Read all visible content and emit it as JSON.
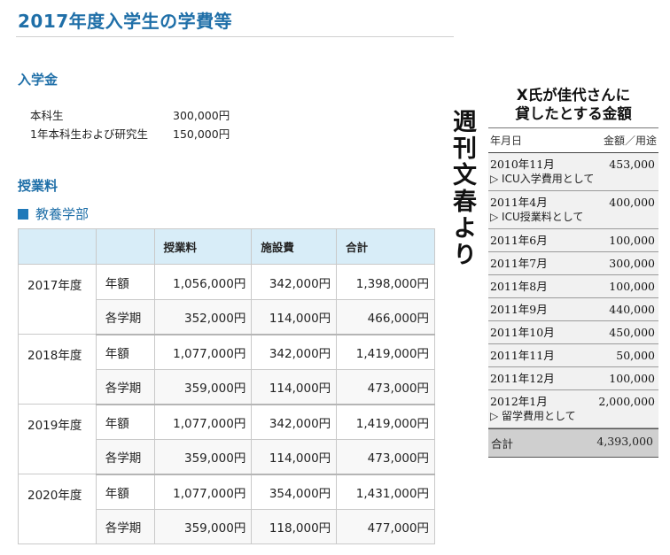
{
  "title": "2017年度入学生の学費等",
  "admission": {
    "heading": "入学金",
    "rows": [
      {
        "label": "本科生",
        "amount": "300,000円"
      },
      {
        "label": "1年本科生および研究生",
        "amount": "150,000円"
      }
    ]
  },
  "tuition": {
    "heading": "授業料",
    "subheading": "教養学部",
    "columns": [
      "",
      "",
      "授業料",
      "施設費",
      "合計"
    ],
    "groups": [
      {
        "year": "2017年度",
        "rows": [
          {
            "kind": "年額",
            "tuition": "1,056,000円",
            "facility": "342,000円",
            "total": "1,398,000円"
          },
          {
            "kind": "各学期",
            "tuition": "352,000円",
            "facility": "114,000円",
            "total": "466,000円"
          }
        ]
      },
      {
        "year": "2018年度",
        "rows": [
          {
            "kind": "年額",
            "tuition": "1,077,000円",
            "facility": "342,000円",
            "total": "1,419,000円"
          },
          {
            "kind": "各学期",
            "tuition": "359,000円",
            "facility": "114,000円",
            "total": "473,000円"
          }
        ]
      },
      {
        "year": "2019年度",
        "rows": [
          {
            "kind": "年額",
            "tuition": "1,077,000円",
            "facility": "342,000円",
            "total": "1,419,000円"
          },
          {
            "kind": "各学期",
            "tuition": "359,000円",
            "facility": "114,000円",
            "total": "473,000円"
          }
        ]
      },
      {
        "year": "2020年度",
        "rows": [
          {
            "kind": "年額",
            "tuition": "1,077,000円",
            "facility": "354,000円",
            "total": "1,431,000円"
          },
          {
            "kind": "各学期",
            "tuition": "359,000円",
            "facility": "118,000円",
            "total": "477,000円"
          }
        ]
      }
    ]
  },
  "source_label": "週刊文春より",
  "sidebar": {
    "title_line1": "X氏が佳代さんに",
    "title_line2": "貸したとする金額",
    "col_date": "年月日",
    "col_amount": "金額／用途",
    "entries": [
      {
        "date": "2010年11月",
        "amount": "453,000",
        "note": "▷ ICU入学費用として"
      },
      {
        "date": "2011年4月",
        "amount": "400,000",
        "note": "▷ ICU授業料として"
      },
      {
        "date": "2011年6月",
        "amount": "100,000",
        "note": ""
      },
      {
        "date": "2011年7月",
        "amount": "300,000",
        "note": ""
      },
      {
        "date": "2011年8月",
        "amount": "100,000",
        "note": ""
      },
      {
        "date": "2011年9月",
        "amount": "440,000",
        "note": ""
      },
      {
        "date": "2011年10月",
        "amount": "450,000",
        "note": ""
      },
      {
        "date": "2011年11月",
        "amount": "50,000",
        "note": ""
      },
      {
        "date": "2011年12月",
        "amount": "100,000",
        "note": ""
      },
      {
        "date": "2012年1月",
        "amount": "2,000,000",
        "note": "▷ 留学費用として"
      }
    ],
    "total_label": "合計",
    "total_amount": "4,393,000"
  }
}
